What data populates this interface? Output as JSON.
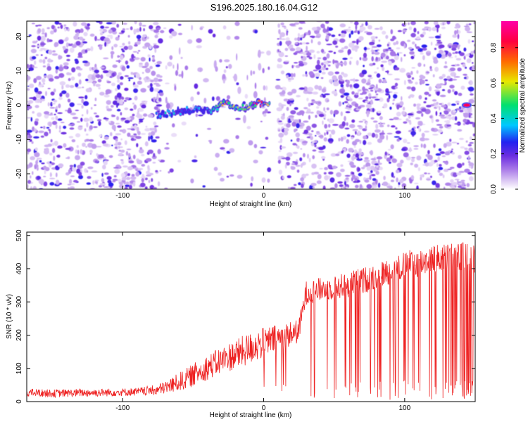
{
  "title": "S196.2025.180.16.04.G12",
  "colors": {
    "snr_line": "#ee2222",
    "colormap": [
      "#ffffff",
      "#dcc8f4",
      "#a878e8",
      "#6a2ce0",
      "#2222f0",
      "#00c8ff",
      "#00e070",
      "#e8e800",
      "#ff6a00",
      "#ff0040",
      "#ff00a8"
    ]
  },
  "chart_data": [
    {
      "type": "heatmap",
      "xlabel": "Height of straight line (km)",
      "ylabel": "Frequency (Hz)",
      "xlim": [
        -168,
        150
      ],
      "ylim": [
        -24.5,
        24.5
      ],
      "xticks": [
        -100,
        0,
        100
      ],
      "yticks": [
        -20,
        -10,
        0,
        10,
        20
      ],
      "colorbar": {
        "label": "Normalized spectral amplitude",
        "range": [
          0,
          0.95
        ],
        "ticks": [
          0.0,
          0.2,
          0.4,
          0.6,
          0.8
        ]
      },
      "noise_regions": [
        {
          "x": [
            -168,
            -72
          ],
          "density": "high"
        },
        {
          "x": [
            -72,
            5
          ],
          "density": "sparse"
        },
        {
          "x": [
            10,
            150
          ],
          "density": "high"
        }
      ],
      "signal_track": {
        "x": [
          -76,
          -70,
          -62,
          -55,
          -48,
          -40,
          -34,
          -28,
          -22,
          -16,
          -10,
          -4,
          0,
          5
        ],
        "frequency": [
          -3.0,
          -2.5,
          -2.0,
          -1.5,
          -1.0,
          -1.5,
          -1.0,
          0.5,
          0.0,
          -1.0,
          0.0,
          0.5,
          0.5,
          0.0
        ],
        "amplitude": [
          0.35,
          0.45,
          0.4,
          0.35,
          0.4,
          0.35,
          0.5,
          0.7,
          0.6,
          0.55,
          0.7,
          0.85,
          0.8,
          0.5
        ]
      },
      "isolated_feature": {
        "x": 144,
        "frequency": 0,
        "amplitude": 0.9
      }
    },
    {
      "type": "line",
      "xlabel": "Height of straight line (km)",
      "ylabel": "SNR (10 * v/v)",
      "xlim": [
        -168,
        150
      ],
      "ylim": [
        0,
        510
      ],
      "xticks": [
        -100,
        0,
        100
      ],
      "yticks": [
        0,
        100,
        200,
        300,
        400,
        500
      ],
      "series": [
        {
          "x": [
            -168,
            -150,
            -130,
            -110,
            -90,
            -75,
            -65,
            -55,
            -45,
            -35,
            -25,
            -15,
            -5,
            5,
            15,
            25,
            30,
            40,
            50,
            60,
            70,
            80,
            90,
            100,
            110,
            120,
            130,
            140,
            150
          ],
          "y": [
            25,
            22,
            24,
            25,
            27,
            32,
            45,
            62,
            85,
            105,
            125,
            140,
            160,
            175,
            190,
            205,
            320,
            330,
            335,
            345,
            355,
            370,
            385,
            400,
            410,
            420,
            425,
            430,
            420
          ],
          "spread": [
            15,
            15,
            15,
            15,
            15,
            20,
            30,
            40,
            45,
            50,
            55,
            60,
            60,
            55,
            50,
            45,
            45,
            45,
            45,
            50,
            50,
            50,
            50,
            55,
            55,
            55,
            55,
            55,
            55
          ],
          "dropout_rate": [
            0,
            0,
            0,
            0,
            0,
            0,
            0,
            0,
            0,
            0,
            0,
            0,
            0,
            0.02,
            0.04,
            0.04,
            0.06,
            0.08,
            0.1,
            0.1,
            0.12,
            0.12,
            0.14,
            0.14,
            0.16,
            0.18,
            0.18,
            0.2,
            0.2
          ]
        }
      ]
    }
  ]
}
